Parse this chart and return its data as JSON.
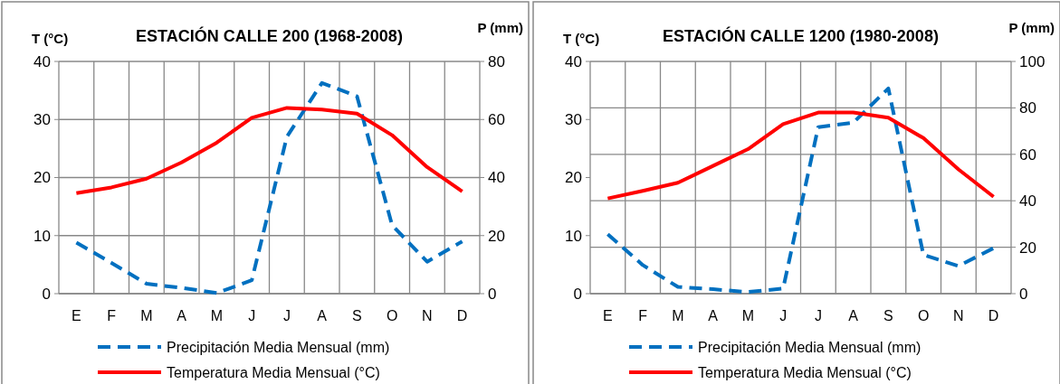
{
  "chart_data": [
    {
      "type": "line",
      "title": "ESTACIÓN CALLE 200 (1968-2008)",
      "ylabel": "T (°C)",
      "y2label": "P (mm)",
      "categories": [
        "E",
        "F",
        "M",
        "A",
        "M",
        "J",
        "J",
        "A",
        "S",
        "O",
        "N",
        "D"
      ],
      "series": [
        {
          "name": "Precipitación Media Mensual (mm)",
          "color": "#0070c0",
          "axis": "y2",
          "line_style": "dashed",
          "values": [
            17.6,
            10.6,
            3.4,
            2,
            0.2,
            4.6,
            54,
            72.6,
            68,
            23.6,
            11,
            18
          ]
        },
        {
          "name": "Temperatura Media Mensual (°C)",
          "color": "#ff0000",
          "line_style": "solid",
          "values": [
            17.3,
            18.3,
            19.8,
            22.6,
            26,
            30.3,
            32,
            31.7,
            31,
            27.3,
            21.8,
            17.6
          ]
        }
      ],
      "ylim": [
        0,
        40
      ],
      "yticks": [
        0,
        10,
        20,
        30,
        40
      ],
      "y2lim": [
        0,
        80
      ],
      "y2ticks": [
        0,
        20,
        40,
        60,
        80
      ],
      "grid": true,
      "legend": "bottom"
    },
    {
      "type": "line",
      "title": "ESTACIÓN CALLE 1200 (1980-2008)",
      "ylabel": "T (°C)",
      "y2label": "P (mm)",
      "categories": [
        "E",
        "F",
        "M",
        "A",
        "M",
        "J",
        "J",
        "A",
        "S",
        "O",
        "N",
        "D"
      ],
      "series": [
        {
          "name": "Precipitación Media Mensual (mm)",
          "color": "#0070c0",
          "axis": "y2",
          "line_style": "dashed",
          "values": [
            25.6,
            12.3,
            2.9,
            1.9,
            0.7,
            2.2,
            71.7,
            73.6,
            88.4,
            16.7,
            11.9,
            19.6
          ]
        },
        {
          "name": "Temperatura Media Mensual (°C)",
          "color": "#ff0000",
          "line_style": "solid",
          "values": [
            16.4,
            17.7,
            19.1,
            22,
            24.9,
            29.2,
            31.2,
            31.2,
            30.3,
            26.8,
            21.4,
            16.7
          ]
        }
      ],
      "ylim": [
        0,
        40
      ],
      "yticks": [
        0,
        10,
        20,
        30,
        40
      ],
      "y2lim": [
        0,
        100
      ],
      "y2ticks": [
        0,
        20,
        40,
        60,
        80,
        100
      ],
      "grid": true,
      "legend": "bottom"
    }
  ]
}
